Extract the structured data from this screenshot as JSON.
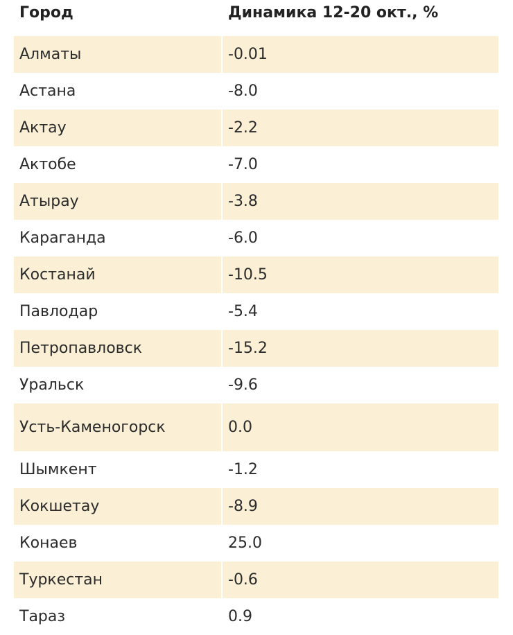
{
  "table": {
    "header": [
      "Город",
      "Динамика 12-20 окт., %"
    ],
    "rows": [
      [
        "Алматы",
        "-0.01"
      ],
      [
        "Астана",
        "-8.0"
      ],
      [
        "Актау",
        "-2.2"
      ],
      [
        "Актобе",
        "-7.0"
      ],
      [
        "Атырау",
        "-3.8"
      ],
      [
        "Караганда",
        "-6.0"
      ],
      [
        "Костанай",
        "-10.5"
      ],
      [
        "Павлодар",
        "-5.4"
      ],
      [
        "Петропавловск",
        "-15.2"
      ],
      [
        "Уральск",
        "-9.6"
      ],
      [
        "Усть-Каменогорск",
        "0.0"
      ],
      [
        "Шымкент",
        "-1.2"
      ],
      [
        "Кокшетау",
        "-8.9"
      ],
      [
        "Конаев",
        "25.0"
      ],
      [
        "Туркестан",
        "-0.6"
      ],
      [
        "Тараз",
        "0.9"
      ]
    ]
  }
}
